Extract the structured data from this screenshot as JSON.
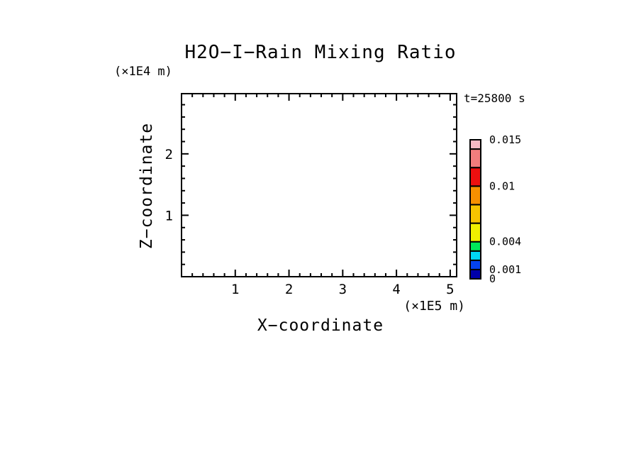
{
  "page": {
    "background": "#ffffff",
    "text_color": "#000000"
  },
  "chart_data": {
    "type": "heatmap",
    "title": "H2O−I−Rain Mixing Ratio",
    "annotation": "t=25800 s",
    "xlabel": "X−coordinate",
    "x_unit": "(×1E5 m)",
    "ylabel": "Z−coordinate",
    "y_unit": "(×1E4 m)",
    "xlim": [
      0,
      5.12
    ],
    "ylim": [
      0,
      2.98
    ],
    "x_major_ticks": [
      1,
      2,
      3,
      4,
      5
    ],
    "y_major_ticks": [
      1,
      2
    ],
    "minor_tick_step": 0.2,
    "ticks_direction": "inward",
    "grid": false,
    "legend_position": "right-colorbar",
    "series": [],
    "plot_area_content": "empty — no contour fill visible (field everywhere below lowest level)",
    "colorbar": {
      "levels": [
        0,
        0.001,
        0.002,
        0.003,
        0.004,
        0.006,
        0.008,
        0.01,
        0.012,
        0.014,
        0.015
      ],
      "segment_colors_bottom_to_top": [
        "#0000AA",
        "#0542EE",
        "#00D6F5",
        "#00E85A",
        "#F0F000",
        "#F7C400",
        "#F79000",
        "#EE0F0F",
        "#F27D7D",
        "#F8B8C4"
      ],
      "tick_labels": [
        {
          "level": 0.015,
          "label": "0.015"
        },
        {
          "level": 0.01,
          "label": "0.01"
        },
        {
          "level": 0.004,
          "label": "0.004"
        },
        {
          "level": 0.001,
          "label": "0.001"
        },
        {
          "level": 0,
          "label": "0"
        }
      ]
    }
  }
}
